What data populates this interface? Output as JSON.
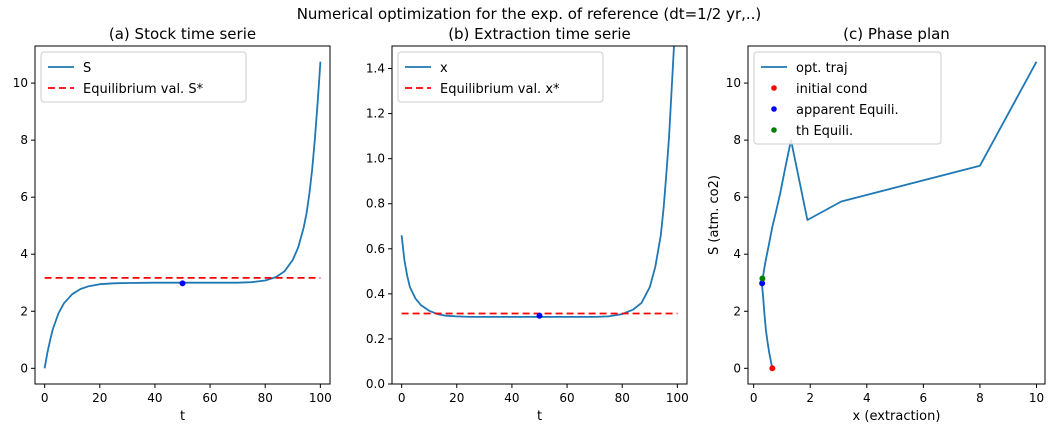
{
  "suptitle": "Numerical optimization for the exp. of reference (dt=1/2 yr,..)",
  "chart_data": [
    {
      "type": "line",
      "title": "(a) Stock time serie",
      "xlabel": "t",
      "ylabel": "",
      "xlim": [
        -3.5,
        103.5
      ],
      "ylim": [
        -0.55,
        11.3
      ],
      "xticks": [
        0,
        20,
        40,
        60,
        80,
        100
      ],
      "yticks": [
        0,
        2,
        4,
        6,
        8,
        10
      ],
      "tick_labels_x": [
        "0",
        "20",
        "40",
        "60",
        "80",
        "100"
      ],
      "tick_labels_y": [
        "0",
        "2",
        "4",
        "6",
        "8",
        "10"
      ],
      "legend_position": "top-left",
      "series": [
        {
          "name": "S",
          "color": "#1f77b4",
          "style": "solid",
          "x": [
            0,
            1,
            2,
            3,
            5,
            7,
            10,
            13,
            16,
            20,
            25,
            30,
            40,
            50,
            60,
            70,
            75,
            80,
            84,
            87,
            90,
            92,
            94,
            95,
            96,
            97,
            98,
            99,
            99.5,
            100
          ],
          "y": [
            0.0,
            0.55,
            1.0,
            1.38,
            1.92,
            2.28,
            2.6,
            2.78,
            2.88,
            2.95,
            2.98,
            2.99,
            3.0,
            3.0,
            3.0,
            3.0,
            3.02,
            3.08,
            3.2,
            3.4,
            3.8,
            4.25,
            4.95,
            5.45,
            6.1,
            6.95,
            8.0,
            9.3,
            10.0,
            10.75
          ]
        },
        {
          "name": "Equilibrium val. S*",
          "color": "#ff0000",
          "style": "dashed",
          "x": [
            0,
            100
          ],
          "y": [
            3.17,
            3.17
          ]
        }
      ],
      "points": [
        {
          "x": 50,
          "y": 2.98,
          "color": "#0000ff"
        }
      ]
    },
    {
      "type": "line",
      "title": "(b) Extraction time serie",
      "xlabel": "t",
      "ylabel": "",
      "xlim": [
        -3.5,
        103.5
      ],
      "ylim": [
        0.0,
        1.5
      ],
      "xticks": [
        0,
        20,
        40,
        60,
        80,
        100
      ],
      "yticks": [
        0.0,
        0.2,
        0.4,
        0.6,
        0.8,
        1.0,
        1.2,
        1.4
      ],
      "tick_labels_x": [
        "0",
        "20",
        "40",
        "60",
        "80",
        "100"
      ],
      "tick_labels_y": [
        "0.0",
        "0.2",
        "0.4",
        "0.6",
        "0.8",
        "1.0",
        "1.2",
        "1.4"
      ],
      "legend_position": "top-left",
      "series": [
        {
          "name": "x",
          "color": "#1f77b4",
          "style": "solid",
          "x": [
            0,
            1,
            2,
            3,
            5,
            7,
            10,
            13,
            16,
            20,
            25,
            30,
            40,
            50,
            60,
            70,
            75,
            80,
            84,
            87,
            90,
            92,
            94,
            95,
            96,
            97,
            98,
            99
          ],
          "y": [
            0.66,
            0.55,
            0.48,
            0.43,
            0.38,
            0.35,
            0.325,
            0.31,
            0.303,
            0.3,
            0.298,
            0.298,
            0.298,
            0.298,
            0.298,
            0.298,
            0.3,
            0.31,
            0.33,
            0.36,
            0.43,
            0.52,
            0.66,
            0.78,
            0.93,
            1.1,
            1.32,
            1.55
          ]
        },
        {
          "name": "Equilibrium val. x*",
          "color": "#ff0000",
          "style": "dashed",
          "x": [
            0,
            100
          ],
          "y": [
            0.313,
            0.313
          ]
        }
      ],
      "points": [
        {
          "x": 50,
          "y": 0.303,
          "color": "#0000ff"
        }
      ]
    },
    {
      "type": "line",
      "title": "(c) Phase plan",
      "xlabel": "x (extraction)",
      "ylabel": "S (atm. co2)",
      "xlim": [
        -0.2,
        10.3
      ],
      "ylim": [
        -0.55,
        11.3
      ],
      "xticks": [
        0,
        2,
        4,
        6,
        8,
        10
      ],
      "yticks": [
        0,
        2,
        4,
        6,
        8,
        10
      ],
      "tick_labels_x": [
        "0",
        "2",
        "4",
        "6",
        "8",
        "10"
      ],
      "tick_labels_y": [
        "0",
        "2",
        "4",
        "6",
        "8",
        "10"
      ],
      "legend_position": "top-left",
      "series": [
        {
          "name": "opt. traj",
          "color": "#1f77b4",
          "style": "solid",
          "x": [
            0.66,
            0.55,
            0.48,
            0.43,
            0.38,
            0.35,
            0.325,
            0.31,
            0.303,
            0.3,
            0.298,
            0.31,
            0.33,
            0.36,
            0.43,
            0.52,
            0.66,
            0.78,
            0.93,
            1.1,
            1.32,
            1.9,
            3.1,
            8.0,
            10.0
          ],
          "y": [
            0.0,
            0.55,
            1.0,
            1.38,
            1.92,
            2.28,
            2.6,
            2.78,
            2.88,
            2.95,
            3.0,
            3.08,
            3.2,
            3.4,
            3.8,
            4.25,
            4.95,
            5.45,
            6.1,
            6.95,
            8.0,
            5.2,
            5.85,
            7.1,
            10.75
          ]
        }
      ],
      "points": [
        {
          "name": "initial cond",
          "x": 0.66,
          "y": 0.0,
          "color": "#ff0000"
        },
        {
          "name": "apparent Equili.",
          "x": 0.3,
          "y": 2.98,
          "color": "#0000ff"
        },
        {
          "name": "th Equili.",
          "x": 0.31,
          "y": 3.15,
          "color": "#008000"
        }
      ]
    }
  ],
  "legends": [
    [
      {
        "label": "S",
        "kind": "line",
        "color": "#1f77b4"
      },
      {
        "label": "Equilibrium val. S*",
        "kind": "dash",
        "color": "#ff0000"
      }
    ],
    [
      {
        "label": "x",
        "kind": "line",
        "color": "#1f77b4"
      },
      {
        "label": "Equilibrium val. x*",
        "kind": "dash",
        "color": "#ff0000"
      }
    ],
    [
      {
        "label": "opt. traj",
        "kind": "line",
        "color": "#1f77b4"
      },
      {
        "label": "initial cond",
        "kind": "dot",
        "color": "#ff0000"
      },
      {
        "label": "apparent Equili.",
        "kind": "dot",
        "color": "#0000ff"
      },
      {
        "label": "th Equili.",
        "kind": "dot",
        "color": "#008000"
      }
    ]
  ]
}
